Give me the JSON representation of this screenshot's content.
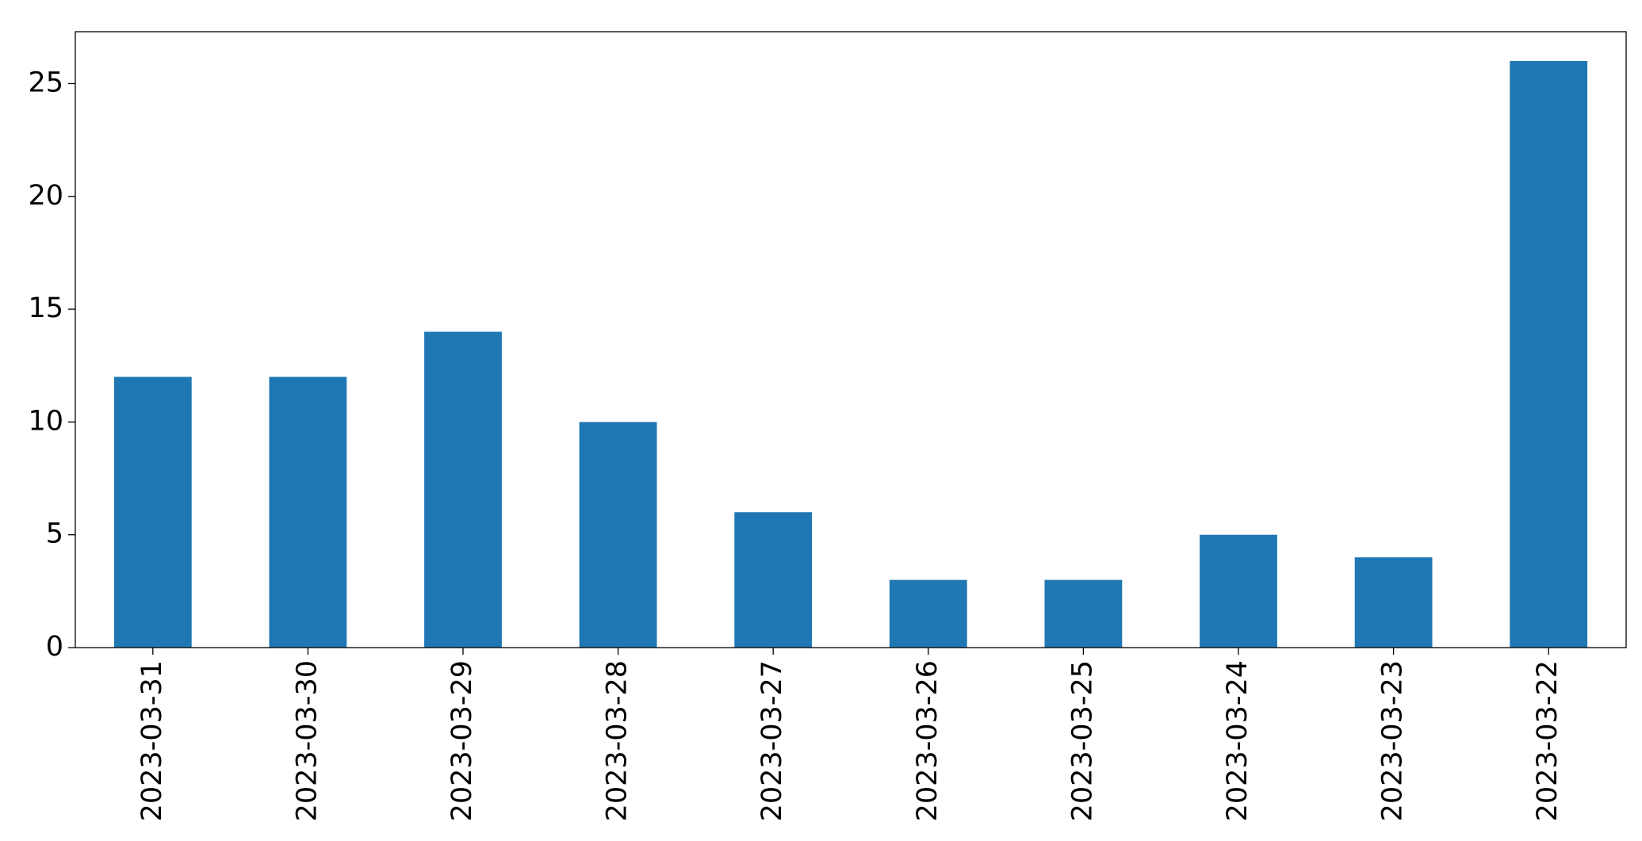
{
  "chart_data": {
    "type": "bar",
    "categories": [
      "2023-03-31",
      "2023-03-30",
      "2023-03-29",
      "2023-03-28",
      "2023-03-27",
      "2023-03-26",
      "2023-03-25",
      "2023-03-24",
      "2023-03-23",
      "2023-03-22"
    ],
    "values": [
      12,
      12,
      14,
      10,
      6,
      3,
      3,
      5,
      4,
      26
    ],
    "color": "#1f77b4",
    "ylim": [
      0,
      27.3
    ],
    "yticks": [
      0,
      5,
      10,
      15,
      20,
      25
    ],
    "grid": false
  }
}
